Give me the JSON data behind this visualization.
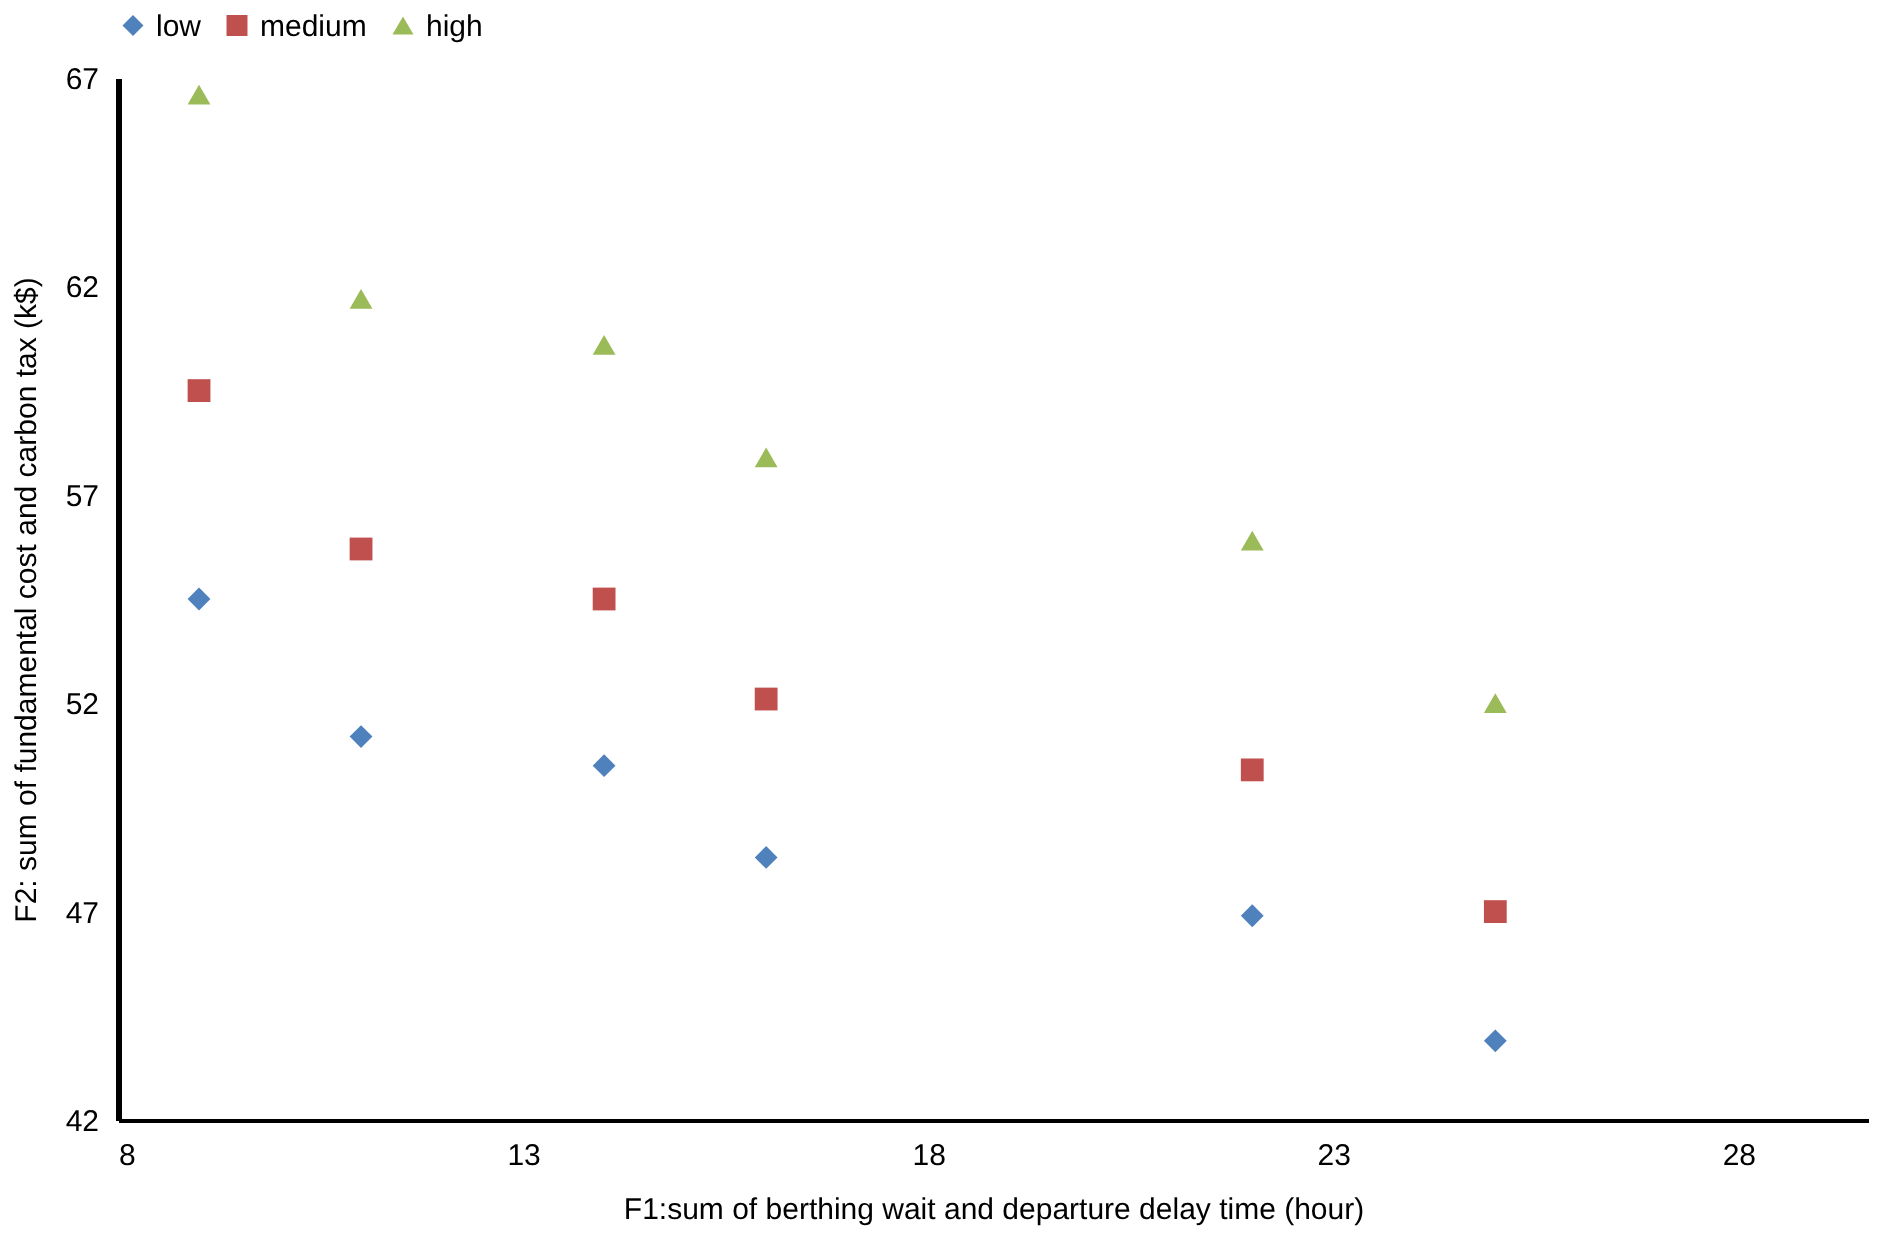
{
  "chart_data": {
    "type": "scatter",
    "xlabel": "F1:sum of berthing wait and departure delay time (hour)",
    "ylabel": "F2: sum of fundamental cost and carbon tax (k$)",
    "x": [
      9,
      11,
      14,
      16,
      22,
      25
    ],
    "series": [
      {
        "name": "low",
        "color": "#4f81bd",
        "marker": "diamond",
        "values": [
          54.5,
          51.2,
          50.5,
          48.3,
          46.9,
          43.9
        ]
      },
      {
        "name": "medium",
        "color": "#c0504d",
        "marker": "square",
        "values": [
          59.5,
          55.7,
          54.5,
          52.1,
          50.4,
          47.0
        ]
      },
      {
        "name": "high",
        "color": "#9bbb59",
        "marker": "triangle",
        "values": [
          66.6,
          61.7,
          60.6,
          57.9,
          55.9,
          52.0
        ]
      }
    ],
    "xlim": [
      8,
      29.6
    ],
    "xticks": [
      8,
      13,
      18,
      23,
      28
    ],
    "ylim": [
      42,
      67
    ],
    "yticks": [
      42,
      47,
      52,
      57,
      62,
      67
    ],
    "grid": false,
    "legend": "top"
  }
}
